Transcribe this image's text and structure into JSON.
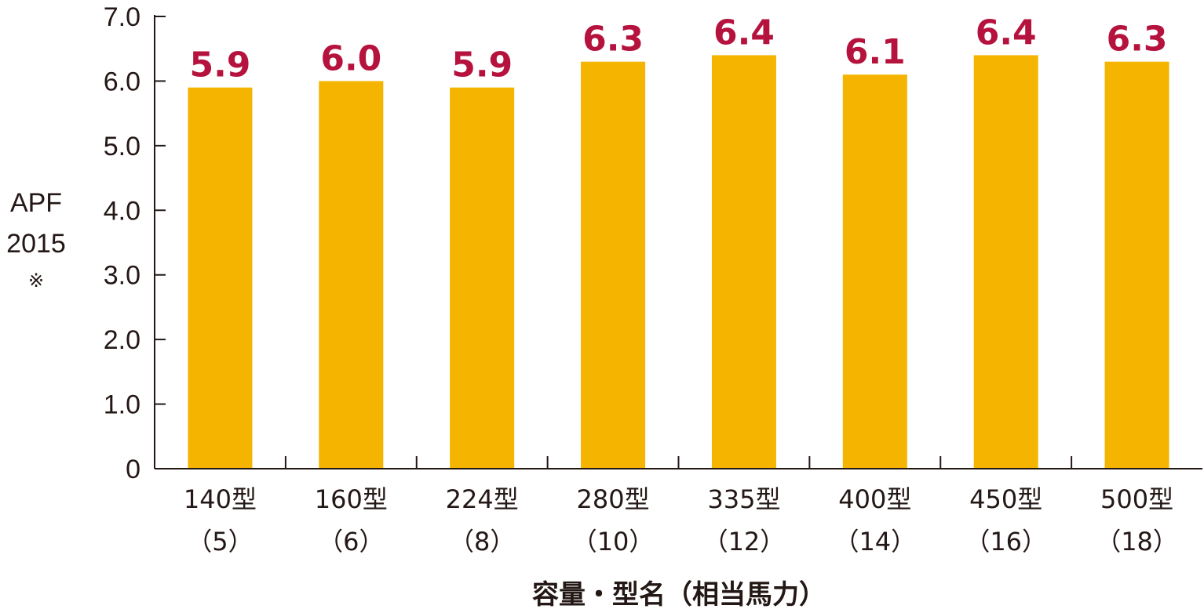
{
  "chart_data": {
    "type": "bar",
    "categories": [
      {
        "model": "140型",
        "hp": "（5）"
      },
      {
        "model": "160型",
        "hp": "（6）"
      },
      {
        "model": "224型",
        "hp": "（8）"
      },
      {
        "model": "280型",
        "hp": "（10）"
      },
      {
        "model": "335型",
        "hp": "（12）"
      },
      {
        "model": "400型",
        "hp": "（14）"
      },
      {
        "model": "450型",
        "hp": "（16）"
      },
      {
        "model": "500型",
        "hp": "（18）"
      }
    ],
    "values": [
      5.9,
      6.0,
      5.9,
      6.3,
      6.4,
      6.1,
      6.4,
      6.3
    ],
    "data_labels": [
      "5.9",
      "6.0",
      "5.9",
      "6.3",
      "6.4",
      "6.1",
      "6.4",
      "6.3"
    ],
    "ylabel_lines": [
      "APF",
      "2015",
      "※"
    ],
    "xlabel": "容量・型名（相当馬力）",
    "ylim": [
      0,
      7
    ],
    "yticks": [
      {
        "value": 0,
        "label": "0"
      },
      {
        "value": 1,
        "label": "1.0"
      },
      {
        "value": 2,
        "label": "2.0"
      },
      {
        "value": 3,
        "label": "3.0"
      },
      {
        "value": 4,
        "label": "4.0"
      },
      {
        "value": 5,
        "label": "5.0"
      },
      {
        "value": 6,
        "label": "6.0"
      },
      {
        "value": 7,
        "label": "7.0"
      }
    ],
    "grid": false,
    "legend": "none",
    "colors": {
      "bar": "#f5b400",
      "data_label": "#b5123d",
      "axis": "#231815"
    }
  }
}
